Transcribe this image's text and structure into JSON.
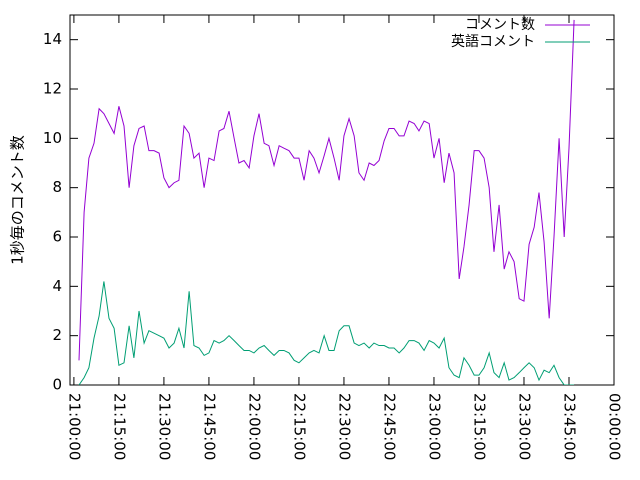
{
  "chart_data": {
    "type": "line",
    "y_label": "1秒毎のコメント数",
    "x": [
      1.7,
      3.4,
      5.0,
      6.7,
      8.4,
      10.0,
      11.7,
      13.4,
      15.0,
      16.7,
      18.4,
      20.0,
      21.7,
      23.4,
      25.0,
      26.7,
      28.4,
      30.0,
      31.7,
      33.4,
      35.0,
      36.7,
      38.4,
      40.0,
      41.7,
      43.4,
      45.0,
      46.7,
      48.4,
      50.0,
      51.7,
      53.4,
      55.0,
      56.7,
      58.4,
      60.0,
      61.7,
      63.4,
      65.0,
      66.7,
      68.4,
      70.0,
      71.7,
      73.4,
      75.0,
      76.7,
      78.4,
      80.0,
      81.7,
      83.4,
      85.0,
      86.7,
      88.4,
      90.0,
      91.7,
      93.4,
      95.0,
      96.7,
      98.4,
      100.0,
      101.7,
      103.4,
      105.0,
      106.7,
      108.4,
      110.0,
      111.7,
      113.4,
      115.0,
      116.7,
      118.4,
      120.0,
      121.7,
      123.4,
      125.0,
      126.7,
      128.4,
      130.0,
      131.7,
      133.4,
      135.0,
      136.7,
      138.4,
      140.0,
      141.7,
      143.4,
      145.0,
      146.7,
      148.4,
      150.0,
      151.7,
      153.4,
      155.0,
      156.7,
      158.4,
      160.0,
      161.7,
      163.4,
      165.0,
      166.7
    ],
    "series": [
      {
        "name": "コメント数",
        "color": "#9400d3",
        "values": [
          1,
          7,
          9.2,
          9.8,
          11.2,
          11,
          10.6,
          10.2,
          11.3,
          10.5,
          8,
          9.7,
          10.4,
          10.5,
          9.5,
          9.5,
          9.4,
          8.4,
          8,
          8.2,
          8.3,
          10.5,
          10.2,
          9.2,
          9.4,
          8,
          9.2,
          9.1,
          10.3,
          10.4,
          11.1,
          10,
          9,
          9.1,
          8.8,
          10.1,
          11,
          9.8,
          9.7,
          8.9,
          9.7,
          9.6,
          9.5,
          9.2,
          9.2,
          8.3,
          9.5,
          9.2,
          8.6,
          9.3,
          10,
          9.2,
          8.3,
          10.1,
          10.8,
          10.1,
          8.6,
          8.3,
          9,
          8.9,
          9.1,
          9.9,
          10.4,
          10.4,
          10.1,
          10.1,
          10.7,
          10.6,
          10.3,
          10.7,
          10.6,
          9.2,
          10,
          8.2,
          9.4,
          8.6,
          4.3,
          5.6,
          7.3,
          9.5,
          9.5,
          9.2,
          8,
          5.4,
          7.3,
          4.7,
          5.4,
          5,
          3.5,
          3.4,
          5.7,
          6.4,
          7.8,
          5.8,
          2.7,
          6,
          10,
          6,
          9.6,
          14.8
        ]
      },
      {
        "name": "英語コメント",
        "color": "#009e73",
        "values": [
          0,
          0.3,
          0.7,
          1.9,
          2.8,
          4.2,
          2.7,
          2.3,
          0.8,
          0.9,
          2.4,
          1.1,
          3,
          1.7,
          2.2,
          2.1,
          2.0,
          1.9,
          1.5,
          1.7,
          2.3,
          1.5,
          3.8,
          1.6,
          1.5,
          1.2,
          1.3,
          1.8,
          1.7,
          1.8,
          2.0,
          1.8,
          1.6,
          1.4,
          1.4,
          1.3,
          1.5,
          1.6,
          1.4,
          1.2,
          1.4,
          1.4,
          1.3,
          1.0,
          0.9,
          1.1,
          1.3,
          1.4,
          1.3,
          2.0,
          1.4,
          1.4,
          2.2,
          2.4,
          2.4,
          1.7,
          1.6,
          1.7,
          1.5,
          1.7,
          1.6,
          1.6,
          1.5,
          1.5,
          1.3,
          1.5,
          1.8,
          1.8,
          1.7,
          1.4,
          1.8,
          1.7,
          1.5,
          1.9,
          0.7,
          0.4,
          0.3,
          1.1,
          0.8,
          0.4,
          0.4,
          0.7,
          1.3,
          0.5,
          0.3,
          0.9,
          0.2,
          0.3,
          0.5,
          0.7,
          0.9,
          0.7,
          0.2,
          0.6,
          0.5,
          0.8,
          0.3,
          0,
          0,
          0
        ]
      }
    ],
    "xlim": [
      -1.3,
      180
    ],
    "xticks": [
      {
        "value": 0,
        "label": "21:00:00"
      },
      {
        "value": 15,
        "label": "21:15:00"
      },
      {
        "value": 30,
        "label": "21:30:00"
      },
      {
        "value": 45,
        "label": "21:45:00"
      },
      {
        "value": 60,
        "label": "22:00:00"
      },
      {
        "value": 75,
        "label": "22:15:00"
      },
      {
        "value": 90,
        "label": "22:30:00"
      },
      {
        "value": 105,
        "label": "22:45:00"
      },
      {
        "value": 120,
        "label": "23:00:00"
      },
      {
        "value": 135,
        "label": "23:15:00"
      },
      {
        "value": 150,
        "label": "23:30:00"
      },
      {
        "value": 165,
        "label": "23:45:00"
      },
      {
        "value": 180,
        "label": "00:00:00"
      }
    ],
    "ylim": [
      0,
      15
    ],
    "yticks": [
      0,
      2,
      4,
      6,
      8,
      10,
      12,
      14
    ],
    "legend": "top-right"
  }
}
